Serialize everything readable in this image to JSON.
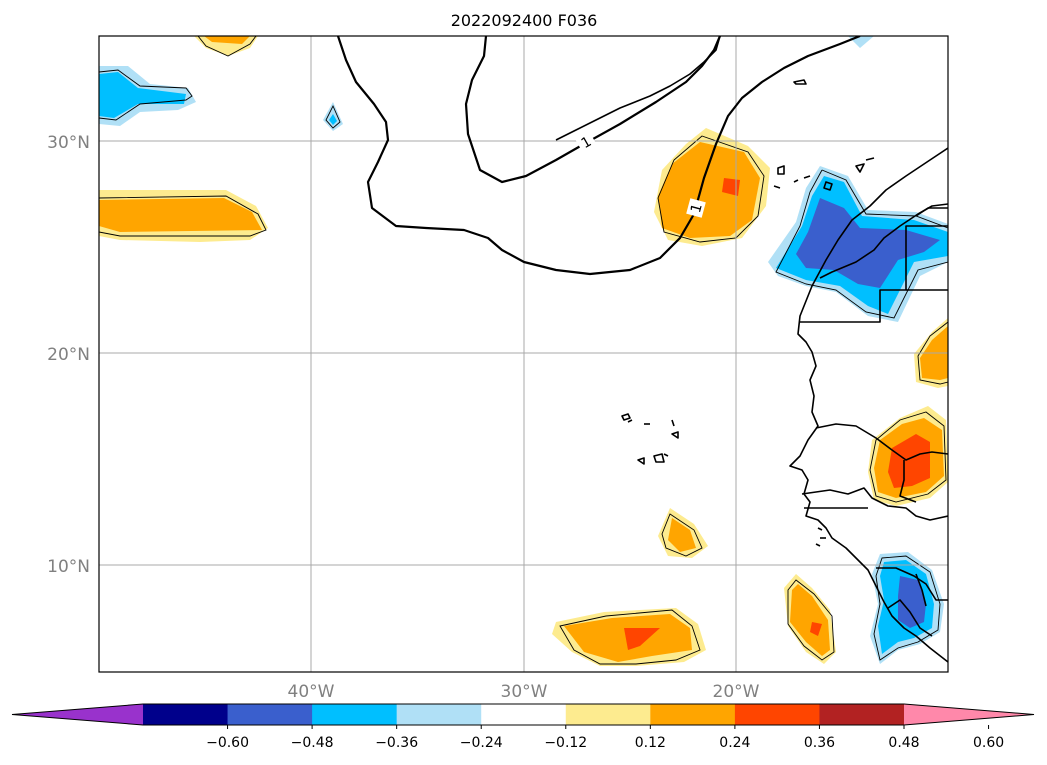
{
  "map": {
    "title": "2022092400 F036",
    "latitude_labels": [
      "30°N",
      "20°N",
      "10°N"
    ],
    "longitude_labels": [
      "40°W",
      "30°W",
      "20°W"
    ],
    "isoline_labels": [
      "1",
      "1"
    ]
  },
  "colorbar": {
    "ticks": [
      "−0.60",
      "−0.48",
      "−0.36",
      "−0.24",
      "−0.12",
      "0.12",
      "0.24",
      "0.36",
      "0.48",
      "0.60"
    ],
    "colors": [
      "#9932cc",
      "#00008b",
      "#3a5fcd",
      "#00bfff",
      "#b0e0f6",
      "#ffffff",
      "#fdeb8f",
      "#ffa500",
      "#ff4500",
      "#b22222",
      "#ff88aa"
    ]
  },
  "fill_colors": {
    "light_yellow": "#fdeb8f",
    "orange": "#ffa500",
    "red_orange": "#ff4500",
    "light_blue": "#b0e0f6",
    "deep_sky_blue": "#00bfff",
    "royal_blue": "#3a5fcd"
  }
}
